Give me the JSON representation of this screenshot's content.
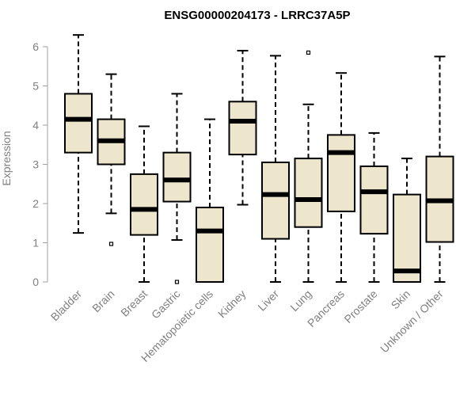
{
  "chart_data": {
    "type": "boxplot",
    "title": "ENSG00000204173 - LRRC37A5P",
    "ylabel": "Expression",
    "xlabel": "",
    "ylim": [
      0,
      6.3
    ],
    "yticks": [
      0,
      1,
      2,
      3,
      4,
      5,
      6
    ],
    "box_color": "#ede6cc",
    "categories": [
      "Bladder",
      "Brain",
      "Breast",
      "Gastric",
      "Hematopoietic cells",
      "Kidney",
      "Liver",
      "Lung",
      "Pancreas",
      "Prostate",
      "Skin",
      "Unknown / Other"
    ],
    "boxes": [
      {
        "whisker_low": 1.25,
        "q1": 3.3,
        "median": 4.15,
        "q3": 4.8,
        "whisker_high": 6.3,
        "outliers": []
      },
      {
        "whisker_low": 1.75,
        "q1": 3.0,
        "median": 3.6,
        "q3": 4.15,
        "whisker_high": 5.3,
        "outliers": [
          0.97
        ]
      },
      {
        "whisker_low": 0.0,
        "q1": 1.2,
        "median": 1.85,
        "q3": 2.75,
        "whisker_high": 3.97,
        "outliers": []
      },
      {
        "whisker_low": 1.07,
        "q1": 2.05,
        "median": 2.6,
        "q3": 3.3,
        "whisker_high": 4.8,
        "outliers": [
          0.0
        ]
      },
      {
        "whisker_low": 0.0,
        "q1": 0.0,
        "median": 1.3,
        "q3": 1.9,
        "whisker_high": 4.15,
        "outliers": []
      },
      {
        "whisker_low": 1.97,
        "q1": 3.25,
        "median": 4.1,
        "q3": 4.6,
        "whisker_high": 5.9,
        "outliers": []
      },
      {
        "whisker_low": 0.0,
        "q1": 1.1,
        "median": 2.23,
        "q3": 3.05,
        "whisker_high": 5.77,
        "outliers": []
      },
      {
        "whisker_low": 0.0,
        "q1": 1.4,
        "median": 2.1,
        "q3": 3.15,
        "whisker_high": 4.53,
        "outliers": [
          5.85
        ]
      },
      {
        "whisker_low": 0.0,
        "q1": 1.8,
        "median": 3.3,
        "q3": 3.75,
        "whisker_high": 5.33,
        "outliers": []
      },
      {
        "whisker_low": 0.0,
        "q1": 1.23,
        "median": 2.3,
        "q3": 2.95,
        "whisker_high": 3.8,
        "outliers": []
      },
      {
        "whisker_low": 0.0,
        "q1": 0.0,
        "median": 0.28,
        "q3": 2.23,
        "whisker_high": 3.15,
        "outliers": []
      },
      {
        "whisker_low": 0.0,
        "q1": 1.02,
        "median": 2.07,
        "q3": 3.2,
        "whisker_high": 5.75,
        "outliers": []
      }
    ]
  }
}
